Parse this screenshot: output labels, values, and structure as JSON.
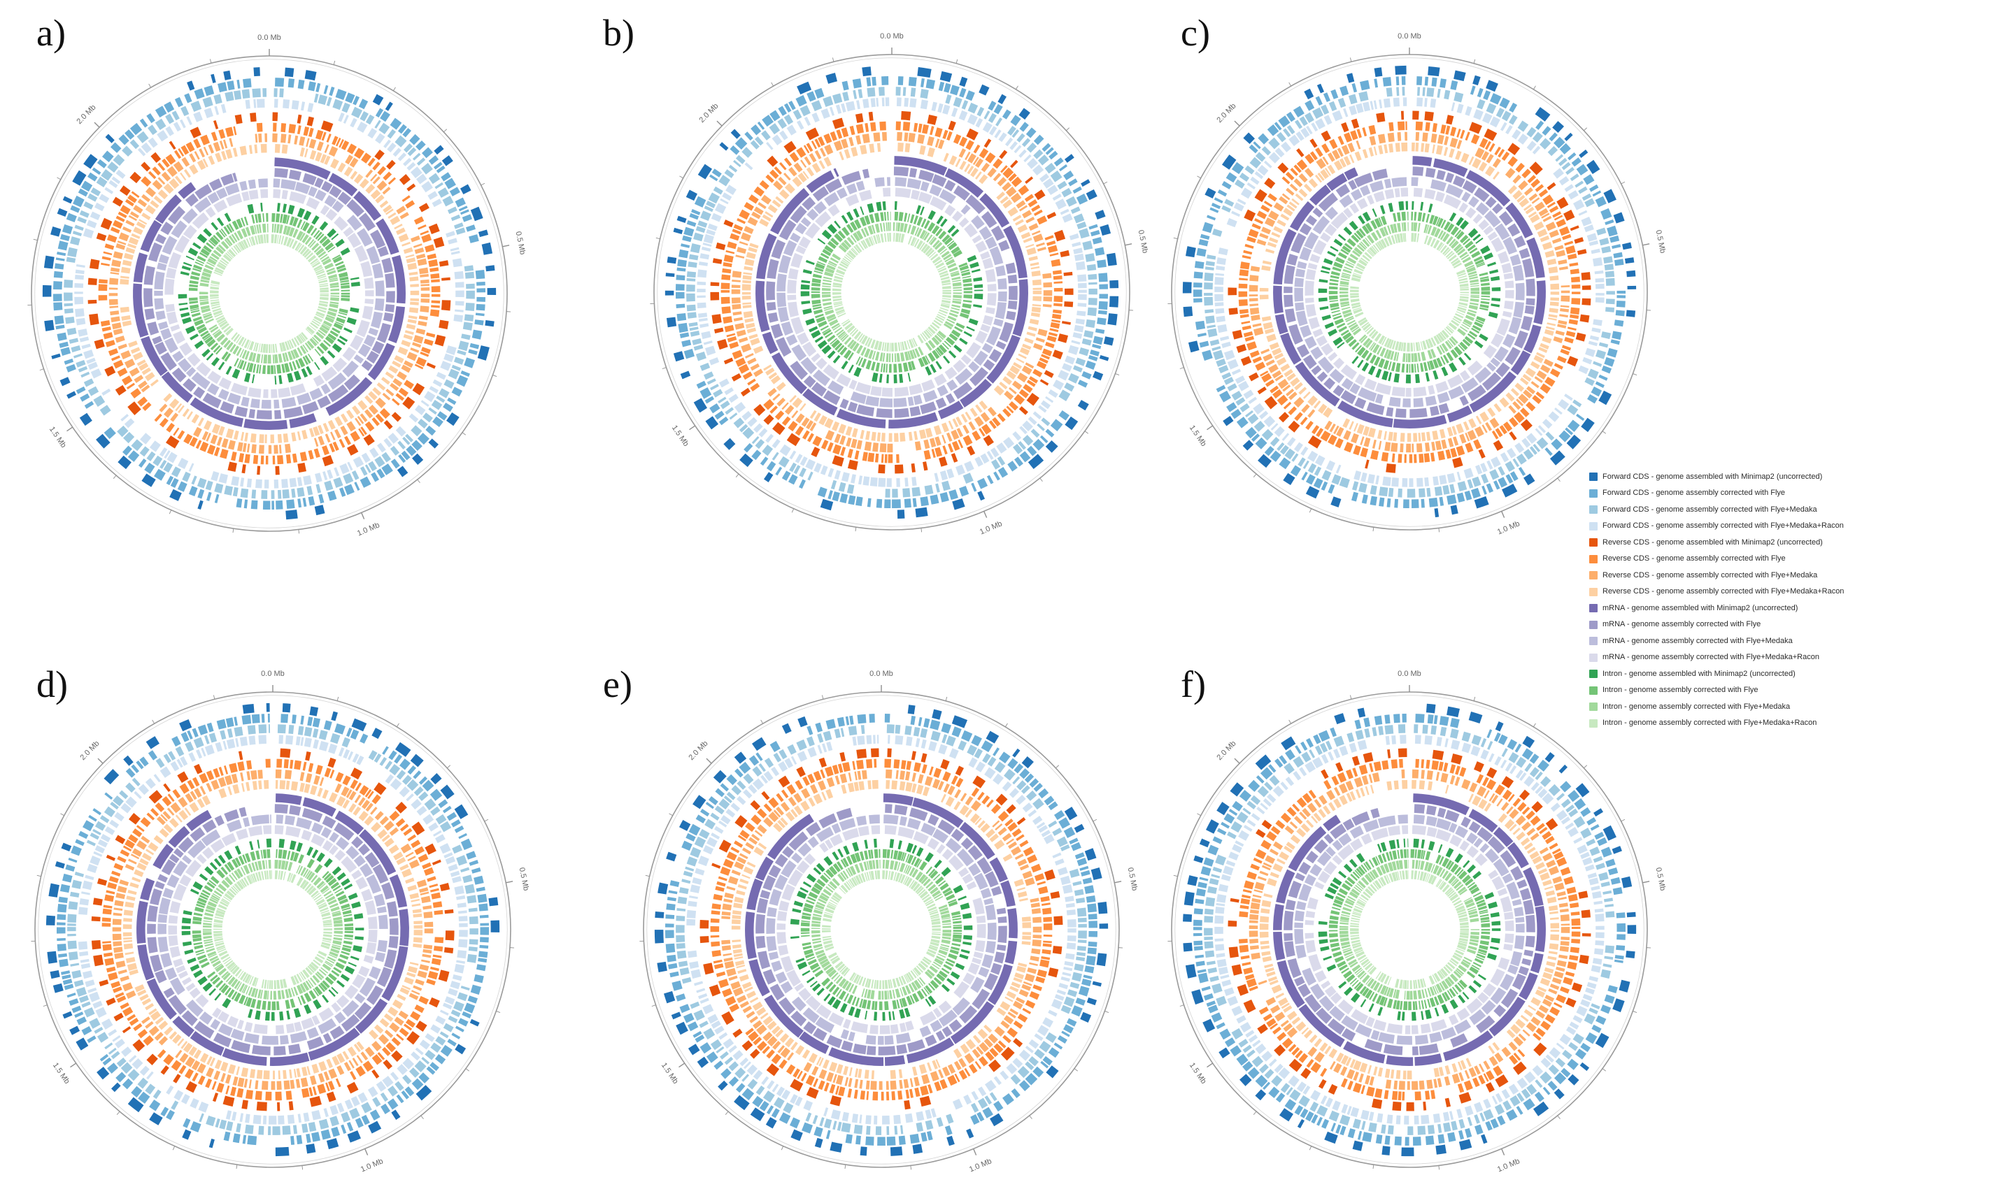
{
  "chart_data": {
    "type": "circos",
    "title": "",
    "description": "Six circular genome annotation plots comparing gene feature tracks (Forward CDS, Reverse CDS, mRNA, Intron) across four assembly versions (Minimap2 uncorrected, Flye, Flye+Medaka, Flye+Medaka+Racon). Rings ordered outer to inner: 4 Forward CDS rings, 4 Reverse CDS rings, 4 mRNA rings, 4 Intron rings.",
    "panels": [
      {
        "id": "a",
        "label": "a)"
      },
      {
        "id": "b",
        "label": "b)"
      },
      {
        "id": "c",
        "label": "c)"
      },
      {
        "id": "d",
        "label": "d)"
      },
      {
        "id": "e",
        "label": "e)"
      },
      {
        "id": "f",
        "label": "f)"
      }
    ],
    "axis": {
      "unit": "Mb",
      "tick_interval_mb": 0.5,
      "minor_tick_interval_mb": 0.1,
      "tick_labels": [
        "0.0 Mb",
        "0.5 Mb",
        "1.0 Mb",
        "1.5 Mb",
        "2.0 Mb"
      ],
      "genome_length_mb": 2.29,
      "direction": "clockwise",
      "start": "top"
    },
    "ring_groups": [
      {
        "feature": "Forward CDS",
        "colors": [
          "#2171b5",
          "#6baed6",
          "#9ecae1",
          "#cfe1f2"
        ]
      },
      {
        "feature": "Reverse CDS",
        "colors": [
          "#e6550d",
          "#fd8d3c",
          "#fdae6b",
          "#fdd0a2"
        ]
      },
      {
        "feature": "mRNA",
        "colors": [
          "#756bb1",
          "#9e9ac8",
          "#bcbddc",
          "#dadaeb"
        ]
      },
      {
        "feature": "Intron",
        "colors": [
          "#31a354",
          "#74c476",
          "#a1d99b",
          "#c7e9c0"
        ]
      }
    ],
    "legend": [
      {
        "label": "Forward CDS - genome assembled with Minimap2 (uncorrected)",
        "color": "#2171b5"
      },
      {
        "label": "Forward CDS - genome assembly corrected with Flye",
        "color": "#6baed6"
      },
      {
        "label": "Forward CDS - genome assembly corrected with Flye+Medaka",
        "color": "#9ecae1"
      },
      {
        "label": "Forward CDS - genome assembly corrected with Flye+Medaka+Racon",
        "color": "#cfe1f2"
      },
      {
        "label": "Reverse CDS - genome assembled with Minimap2 (uncorrected)",
        "color": "#e6550d"
      },
      {
        "label": "Reverse CDS - genome assembly corrected with Flye",
        "color": "#fd8d3c"
      },
      {
        "label": "Reverse CDS - genome assembly corrected with Flye+Medaka",
        "color": "#fdae6b"
      },
      {
        "label": "Reverse CDS - genome assembly corrected with Flye+Medaka+Racon",
        "color": "#fdd0a2"
      },
      {
        "label": "mRNA - genome assembled with Minimap2 (uncorrected)",
        "color": "#756bb1"
      },
      {
        "label": "mRNA - genome assembly corrected with Flye",
        "color": "#9e9ac8"
      },
      {
        "label": "mRNA - genome assembly corrected with Flye+Medaka",
        "color": "#bcbddc"
      },
      {
        "label": "mRNA - genome assembly corrected with Flye+Medaka+Racon",
        "color": "#dadaeb"
      },
      {
        "label": "Intron - genome assembled with Minimap2 (uncorrected)",
        "color": "#31a354"
      },
      {
        "label": "Intron - genome assembly corrected with Flye",
        "color": "#74c476"
      },
      {
        "label": "Intron - genome assembly corrected with Flye+Medaka",
        "color": "#a1d99b"
      },
      {
        "label": "Intron - genome assembly corrected with Flye+Medaka+Racon",
        "color": "#c7e9c0"
      }
    ]
  }
}
